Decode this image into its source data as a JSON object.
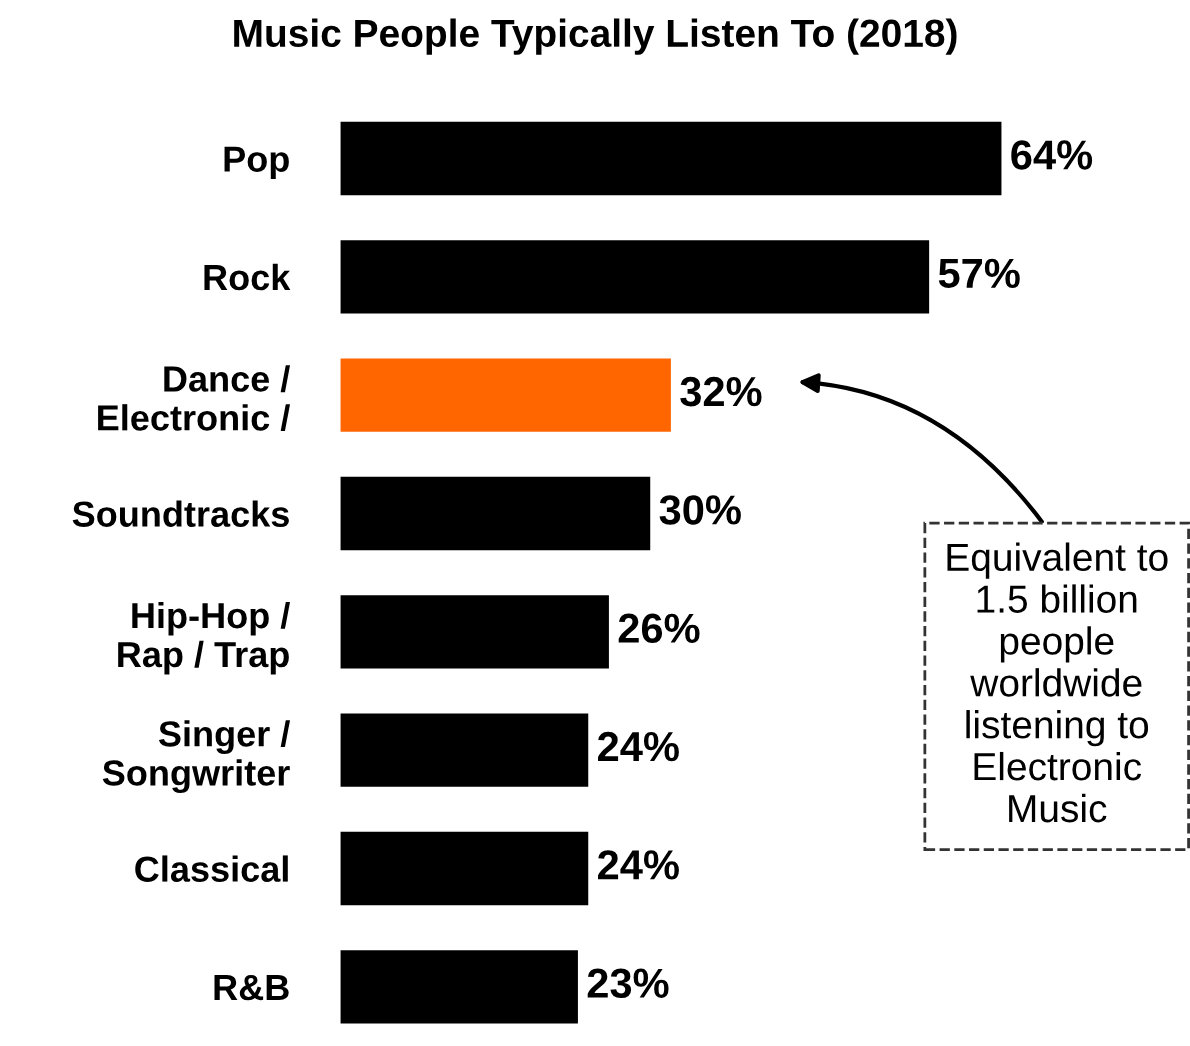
{
  "chart_data": {
    "type": "bar",
    "orientation": "horizontal",
    "title": "Music People Typically Listen To (2018)",
    "categories": [
      "Pop",
      "Rock",
      "Dance /\nElectronic /",
      "Soundtracks",
      "Hip-Hop /\nRap / Trap",
      "Singer /\nSongwriter",
      "Classical",
      "R&B"
    ],
    "values": [
      64,
      57,
      32,
      30,
      26,
      24,
      24,
      23
    ],
    "colors": [
      "#000000",
      "#000000",
      "#ff6600",
      "#000000",
      "#000000",
      "#000000",
      "#000000",
      "#000000"
    ],
    "value_labels": [
      "64%",
      "57%",
      "32%",
      "30%",
      "26%",
      "24%",
      "24%",
      "23%"
    ],
    "grid": false,
    "annotations": [
      "Equivalent to\n1.5 billion\npeople\nworldwide\nlistening to\nElectronic\nMusic"
    ]
  }
}
